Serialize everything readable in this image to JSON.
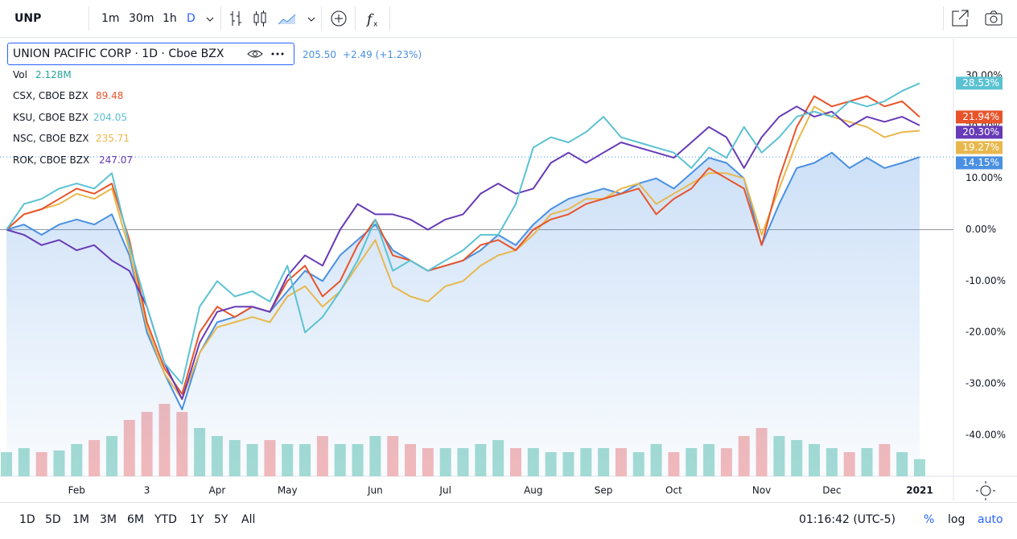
{
  "toolbar": {
    "symbol": "UNP",
    "intervals": [
      "1m",
      "30m",
      "1h",
      "D"
    ]
  },
  "legend": {
    "price": "205.50",
    "change": "+2.49 (+1.23%)",
    "vol_label": "Vol",
    "vol_value": "2.128M"
  },
  "chart_data": {
    "type": "line",
    "categories": [
      null,
      null,
      null,
      null,
      "Feb",
      null,
      null,
      null,
      "3",
      null,
      null,
      null,
      "Apr",
      null,
      null,
      null,
      "May",
      null,
      null,
      null,
      null,
      "Jun",
      null,
      null,
      null,
      "Jul",
      null,
      null,
      null,
      null,
      "Aug",
      null,
      null,
      null,
      "Sep",
      null,
      null,
      null,
      "Oct",
      null,
      null,
      null,
      null,
      "Nov",
      null,
      null,
      null,
      "Dec",
      null,
      null,
      null,
      null,
      "2021"
    ],
    "series": [
      {
        "name": "UNION PACIFIC CORP · 1D · Cboe BZX",
        "color": "#4a90e2",
        "end_label": "14.15%",
        "values": [
          0,
          1,
          -1,
          1,
          2,
          1,
          3,
          -5,
          -20,
          -28,
          -35,
          -24,
          -18,
          -17,
          -15,
          -16,
          -12,
          -8,
          -10,
          -5,
          -2,
          1,
          -4,
          -6,
          -8,
          -7,
          -6,
          -4,
          -1,
          -3,
          1,
          4,
          6,
          7,
          8,
          7,
          9,
          10,
          8,
          11,
          14,
          13,
          10,
          -3,
          5,
          12,
          13,
          15,
          12,
          14,
          12,
          13,
          14.15
        ]
      },
      {
        "name": "CSX, CBOE BZX",
        "last_price": "89.48",
        "color": "#e8542a",
        "end_label": "21.94%",
        "values": [
          0,
          3,
          4,
          6,
          8,
          7,
          9,
          -2,
          -18,
          -27,
          -32,
          -20,
          -15,
          -17,
          -15,
          -16,
          -10,
          -7,
          -13,
          -10,
          -3,
          2,
          -5,
          -6,
          -8,
          -7,
          -6,
          -3,
          -2,
          -4,
          0,
          2,
          3,
          5,
          6,
          7,
          8,
          3,
          6,
          8,
          12,
          10,
          8,
          -3,
          10,
          20,
          26,
          24,
          25,
          26,
          24,
          25,
          21.94
        ]
      },
      {
        "name": "KSU, CBOE BZX",
        "last_price": "204.05",
        "color": "#5bc2d2",
        "end_label": "28.53%",
        "values": [
          0,
          5,
          6,
          8,
          9,
          8,
          11,
          -3,
          -15,
          -26,
          -30,
          -15,
          -10,
          -13,
          -12,
          -14,
          -7,
          -20,
          -17,
          -12,
          -6,
          2,
          -8,
          -6,
          -8,
          -6,
          -4,
          -1,
          -1,
          5,
          16,
          18,
          17,
          19,
          22,
          18,
          17,
          16,
          15,
          12,
          16,
          14,
          20,
          15,
          18,
          22,
          23,
          22,
          25,
          24,
          25,
          27,
          28.53
        ]
      },
      {
        "name": "NSC, CBOE BZX",
        "last_price": "235.71",
        "color": "#e8b84e",
        "end_label": "19.27%",
        "values": [
          0,
          3,
          4,
          5,
          7,
          6,
          8,
          -4,
          -19,
          -28,
          -33,
          -24,
          -19,
          -18,
          -17,
          -18,
          -13,
          -11,
          -15,
          -12,
          -7,
          -2,
          -11,
          -13,
          -14,
          -11,
          -10,
          -7,
          -5,
          -4,
          -1,
          3,
          4,
          6,
          6,
          8,
          9,
          5,
          7,
          9,
          11,
          11,
          10,
          -1,
          8,
          17,
          24,
          22,
          21,
          20,
          18,
          19,
          19.27
        ]
      },
      {
        "name": "ROK, CBOE BZX",
        "last_price": "247.07",
        "color": "#673ab7",
        "end_label": "20.30%",
        "values": [
          0,
          -1,
          -3,
          -2,
          -4,
          -3,
          -6,
          -8,
          -15,
          -26,
          -33,
          -22,
          -16,
          -15,
          -15,
          -16,
          -9,
          -5,
          -7,
          0,
          5,
          3,
          3,
          2,
          0,
          2,
          3,
          7,
          9,
          7,
          8,
          13,
          15,
          13,
          15,
          17,
          16,
          15,
          14,
          17,
          20,
          18,
          12,
          18,
          22,
          24,
          22,
          23,
          20,
          22,
          21,
          22,
          20.3
        ]
      }
    ],
    "volume": {
      "up_color": "#8ed3c8",
      "down_color": "#f2a9a9",
      "vlim": [
        0,
        12
      ],
      "values": [
        3,
        3.5,
        3,
        3.2,
        4,
        4.5,
        5,
        7,
        8,
        9,
        8,
        6,
        5,
        4.5,
        4,
        4.5,
        4,
        4,
        5,
        4,
        4,
        5,
        5,
        4,
        3.5,
        3.5,
        3.5,
        4,
        4.5,
        3.5,
        3.5,
        3,
        3,
        3.5,
        3.5,
        3.5,
        3,
        4,
        3,
        3.5,
        4,
        3.5,
        5,
        6,
        5,
        4.5,
        4,
        3.5,
        3,
        3.5,
        4,
        3,
        2.128
      ]
    },
    "ylim": [
      -48,
      37.2
    ],
    "yticks": [
      {
        "value": 30,
        "label": "30.00%"
      },
      {
        "value": 20,
        "label": "20.00%"
      },
      {
        "value": 10,
        "label": "10.00%"
      },
      {
        "value": 0,
        "label": "0.00%"
      },
      {
        "value": -10,
        "label": "-10.00%"
      },
      {
        "value": -20,
        "label": "-20.00%"
      },
      {
        "value": -30,
        "label": "-30.00%"
      },
      {
        "value": -40,
        "label": "-40.00%"
      }
    ],
    "grid": false
  },
  "range_buttons": [
    "1D",
    "5D",
    "1M",
    "3M",
    "6M",
    "YTD",
    "1Y",
    "5Y",
    "All"
  ],
  "clock": "01:16:42 (UTC-5)",
  "scale_buttons": [
    "%",
    "log",
    "auto"
  ]
}
